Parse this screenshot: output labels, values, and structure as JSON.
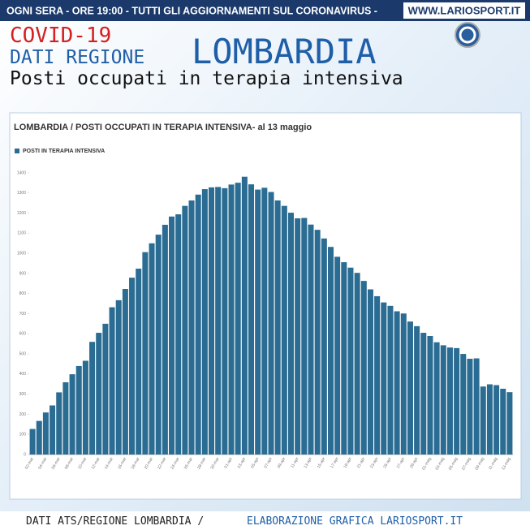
{
  "header": {
    "banner": "OGNI SERA - ORE 19:00 - TUTTI GLI AGGIORNAMENTI SUL CORONAVIRUS - ",
    "site": "WWW.LARIOSPORT.IT",
    "covid": "COVID-19",
    "region_prefix": "DATI REGIONE",
    "region": "LOMBARDIA",
    "subtitle": "Posti occupati in terapia intensiva"
  },
  "footer": {
    "source": "DATI ATS/REGIONE LOMBARDIA /",
    "credit": "ELABORAZIONE GRAFICA LARIOSPORT.IT"
  },
  "chart_data": {
    "type": "bar",
    "title": "LOMBARDIA / POSTI OCCUPATI IN TERAPIA INTENSIVA- al 13 maggio",
    "categories": [
      "02-mar",
      null,
      "04-mar",
      null,
      "06-mar",
      null,
      "08-mar",
      null,
      "10-mar",
      null,
      "12-mar",
      null,
      "14-mar",
      null,
      "16-mar",
      null,
      "18-mar",
      null,
      "20-mar",
      null,
      "22-mar",
      null,
      "24-mar",
      null,
      "26-mar",
      null,
      "28-mar",
      null,
      "30-mar",
      null,
      "01-apr",
      null,
      "03-apr",
      null,
      "05-apr",
      null,
      "07-apr",
      null,
      "09-apr",
      null,
      "11-apr",
      null,
      "13-apr",
      null,
      "15-apr",
      null,
      "17-apr",
      null,
      "19-apr",
      null,
      "21-apr",
      null,
      "23-apr",
      null,
      "25-apr",
      null,
      "27-apr",
      null,
      "29-apr",
      null,
      "01-mag",
      null,
      "03-mag",
      null,
      "05-mag",
      null,
      "07-mag",
      null,
      "09-mag",
      null,
      "11-mag",
      null,
      "13-mag"
    ],
    "series": [
      {
        "name": "POSTI IN TERAPIA INTENSIVA",
        "color": "#2b6c93",
        "values": [
          127,
          167,
          209,
          244,
          309,
          359,
          399,
          440,
          466,
          560,
          605,
          650,
          732,
          767,
          823,
          879,
          924,
          1006,
          1050,
          1093,
          1142,
          1183,
          1194,
          1236,
          1263,
          1292,
          1319,
          1328,
          1330,
          1324,
          1342,
          1351,
          1381,
          1343,
          1317,
          1326,
          1305,
          1263,
          1236,
          1202,
          1174,
          1176,
          1143,
          1117,
          1074,
          1032,
          983,
          956,
          929,
          903,
          863,
          821,
          787,
          756,
          739,
          712,
          701,
          661,
          638,
          605,
          589,
          558,
          543,
          532,
          529,
          500,
          476,
          478,
          338,
          349,
          345,
          327,
          310
        ]
      }
    ],
    "ylim": [
      0,
      1400
    ],
    "yticks": [
      0,
      100,
      200,
      300,
      400,
      500,
      600,
      700,
      800,
      900,
      1000,
      1100,
      1200,
      1300,
      1400
    ]
  }
}
